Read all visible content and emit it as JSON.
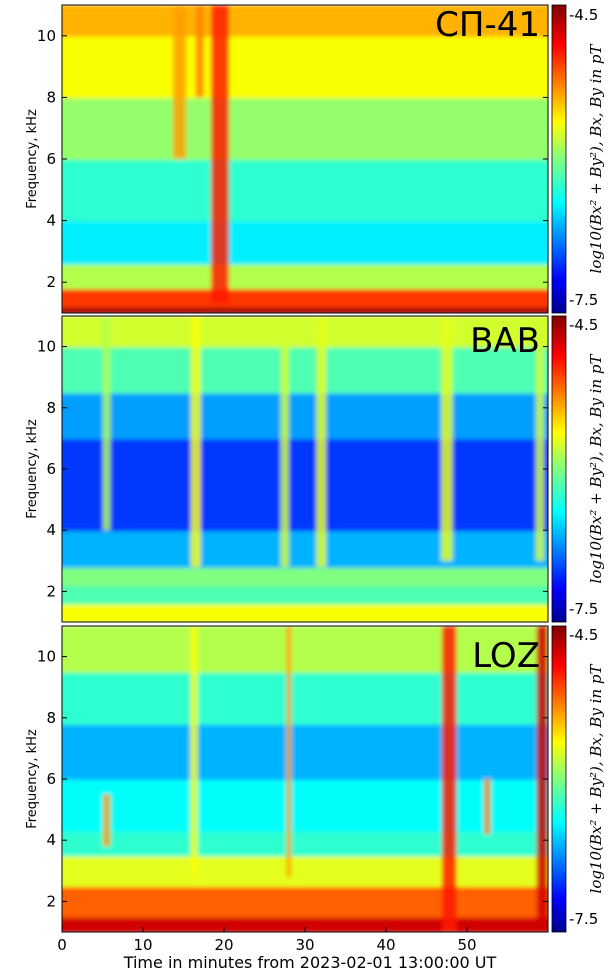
{
  "figure": {
    "xlabel": "Time in minutes from 2023-02-01 13:00:00 UT"
  },
  "chart_data": [
    {
      "type": "heatmap",
      "station": "СП-41",
      "ylabel": "Frequency, kHz",
      "xlabel": "Time in minutes from 2023-02-01 13:00:00 UT",
      "xlim": [
        0,
        60
      ],
      "ylim": [
        1,
        11
      ],
      "xticks": [],
      "yticks": [
        2,
        4,
        6,
        8,
        10
      ],
      "colorbar": {
        "label": "log10(Bx² + By²), Bx, By in pT",
        "range": [
          -7.5,
          -4.5
        ],
        "ticks": [
          "-4.5",
          "-7.5"
        ],
        "colormap": "jet"
      },
      "bands": [
        {
          "f0": 1.0,
          "f1": 1.2,
          "v": 0.97
        },
        {
          "f0": 1.2,
          "f1": 1.8,
          "v": 0.82
        },
        {
          "f0": 1.8,
          "f1": 2.6,
          "v": 0.55
        },
        {
          "f0": 2.6,
          "f1": 4.0,
          "v": 0.36
        },
        {
          "f0": 4.0,
          "f1": 6.0,
          "v": 0.42
        },
        {
          "f0": 6.0,
          "f1": 8.0,
          "v": 0.52
        },
        {
          "f0": 8.0,
          "f1": 10.0,
          "v": 0.62
        },
        {
          "f0": 10.0,
          "f1": 11.0,
          "v": 0.7
        }
      ],
      "bursts": [
        {
          "t": 19.5,
          "w": 2.2,
          "f0": 1.3,
          "f1": 11,
          "v": 0.85
        },
        {
          "t": 14.5,
          "w": 1.6,
          "f0": 6,
          "f1": 11,
          "v": 0.72
        },
        {
          "t": 17.0,
          "w": 1.0,
          "f0": 8,
          "f1": 11,
          "v": 0.75
        }
      ]
    },
    {
      "type": "heatmap",
      "station": "BAB",
      "ylabel": "Frequency, kHz",
      "xlabel": "Time in minutes from 2023-02-01 13:00:00 UT",
      "xlim": [
        0,
        60
      ],
      "ylim": [
        1,
        11
      ],
      "xticks": [],
      "yticks": [
        2,
        4,
        6,
        8,
        10
      ],
      "colorbar": {
        "label": "log10(Bx² + By²), Bx, By in pT",
        "range": [
          -7.5,
          -4.5
        ],
        "ticks": [
          "-4.5",
          "-7.5"
        ],
        "colormap": "jet"
      },
      "bands": [
        {
          "f0": 1.0,
          "f1": 1.6,
          "v": 0.62
        },
        {
          "f0": 1.6,
          "f1": 2.2,
          "v": 0.45
        },
        {
          "f0": 2.2,
          "f1": 2.8,
          "v": 0.5
        },
        {
          "f0": 2.8,
          "f1": 4.0,
          "v": 0.3
        },
        {
          "f0": 4.0,
          "f1": 7.0,
          "v": 0.18
        },
        {
          "f0": 7.0,
          "f1": 8.5,
          "v": 0.28
        },
        {
          "f0": 8.5,
          "f1": 10.0,
          "v": 0.45
        },
        {
          "f0": 10.0,
          "f1": 11.0,
          "v": 0.58
        }
      ],
      "bursts": [
        {
          "t": 5.5,
          "w": 0.9,
          "f0": 4.0,
          "f1": 11,
          "v": 0.55
        },
        {
          "t": 16.5,
          "w": 1.2,
          "f0": 2.8,
          "f1": 11,
          "v": 0.62
        },
        {
          "t": 27.5,
          "w": 1.0,
          "f0": 2.8,
          "f1": 11,
          "v": 0.58
        },
        {
          "t": 32.0,
          "w": 1.2,
          "f0": 2.8,
          "f1": 11,
          "v": 0.6
        },
        {
          "t": 47.5,
          "w": 1.4,
          "f0": 3.0,
          "f1": 11,
          "v": 0.6
        },
        {
          "t": 59.0,
          "w": 1.0,
          "f0": 3.0,
          "f1": 11,
          "v": 0.58
        }
      ]
    },
    {
      "type": "heatmap",
      "station": "LOZ",
      "ylabel": "Frequency, kHz",
      "xlabel": "Time in minutes from 2023-02-01 13:00:00 UT",
      "xlim": [
        0,
        60
      ],
      "ylim": [
        1,
        11
      ],
      "xticks": [
        0,
        10,
        20,
        30,
        40,
        50
      ],
      "yticks": [
        2,
        4,
        6,
        8,
        10
      ],
      "colorbar": {
        "label": "log10(Bx² + By²), Bx, By in pT",
        "range": [
          -7.5,
          -4.5
        ],
        "ticks": [
          "-4.5",
          "-7.5"
        ],
        "colormap": "jet"
      },
      "bands": [
        {
          "f0": 1.0,
          "f1": 1.5,
          "v": 0.92
        },
        {
          "f0": 1.5,
          "f1": 2.5,
          "v": 0.78
        },
        {
          "f0": 2.5,
          "f1": 3.5,
          "v": 0.6
        },
        {
          "f0": 3.5,
          "f1": 4.3,
          "v": 0.42
        },
        {
          "f0": 4.3,
          "f1": 6.0,
          "v": 0.38
        },
        {
          "f0": 6.0,
          "f1": 7.8,
          "v": 0.3
        },
        {
          "f0": 7.8,
          "f1": 9.5,
          "v": 0.42
        },
        {
          "f0": 9.5,
          "f1": 11.0,
          "v": 0.55
        }
      ],
      "bursts": [
        {
          "t": 5.5,
          "w": 0.9,
          "f0": 3.8,
          "f1": 5.5,
          "v": 0.72
        },
        {
          "t": 16.3,
          "w": 0.9,
          "f0": 2.8,
          "f1": 11,
          "v": 0.62
        },
        {
          "t": 28.0,
          "w": 0.6,
          "f0": 2.8,
          "f1": 11,
          "v": 0.72
        },
        {
          "t": 47.8,
          "w": 1.8,
          "f0": 1.0,
          "f1": 11,
          "v": 0.85
        },
        {
          "t": 52.5,
          "w": 0.8,
          "f0": 4.2,
          "f1": 6.0,
          "v": 0.75
        },
        {
          "t": 59.3,
          "w": 1.4,
          "f0": 1.0,
          "f1": 11,
          "v": 0.92
        }
      ]
    }
  ]
}
